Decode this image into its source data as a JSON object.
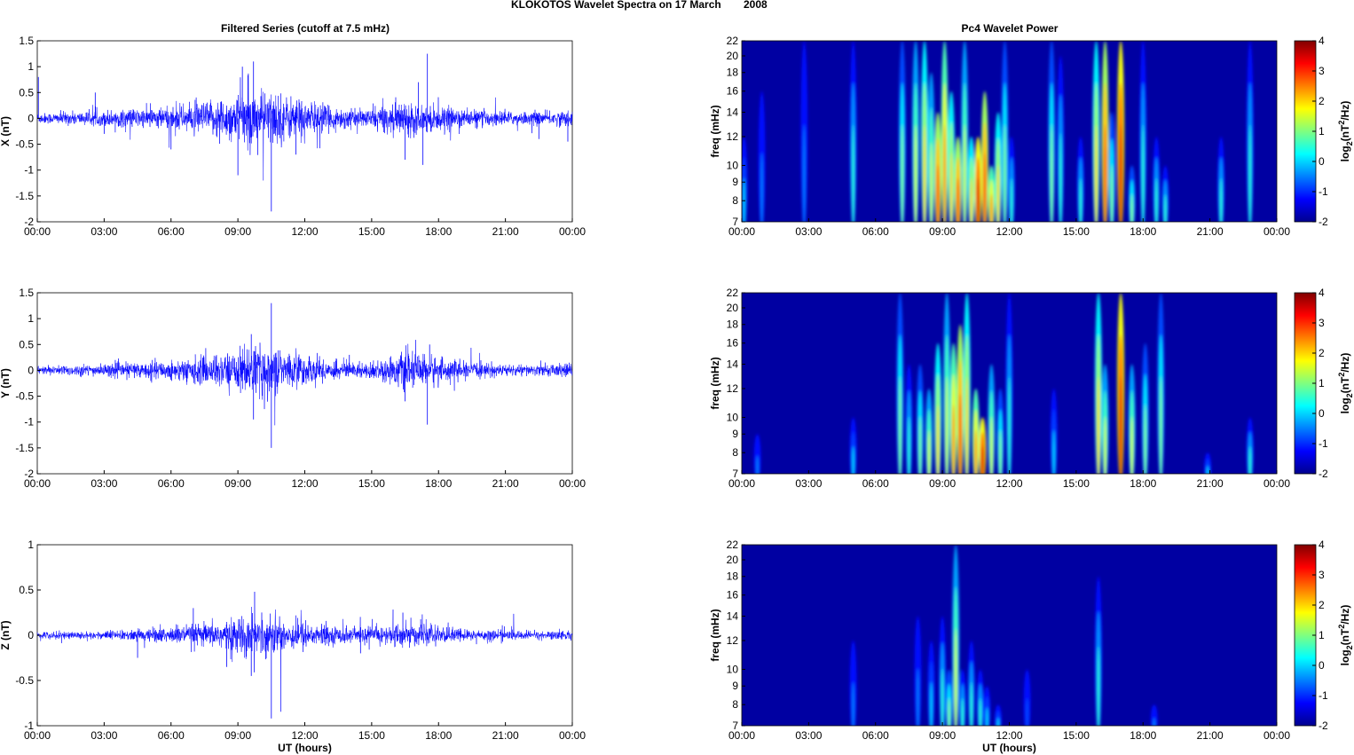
{
  "chart_data": {
    "title_left": "KLOKOTOS Wavelet Spectra on 17 March",
    "title_year": "2008",
    "left_title": "Filtered Series (cutoff at 7.5 mHz)",
    "right_title": "Pc4 Wavelet Power",
    "xlabel": "UT (hours)",
    "xticks": [
      "00:00",
      "03:00",
      "06:00",
      "09:00",
      "12:00",
      "15:00",
      "18:00",
      "21:00",
      "00:00"
    ],
    "xlim": [
      0,
      24
    ],
    "freq_label": "freq (mHz)",
    "freq_ticks": [
      7,
      8,
      9,
      10,
      12,
      14,
      16,
      18,
      20,
      22
    ],
    "freq_lim": [
      7,
      22
    ],
    "colorbar": {
      "label_main": "log",
      "label_sub": "2",
      "label_rest": "(nT",
      "label_sup": "2",
      "label_end": "/Hz)",
      "ticks": [
        -2,
        -1,
        0,
        1,
        2,
        3,
        4
      ],
      "lim": [
        -2,
        4
      ]
    },
    "series": [
      {
        "type": "line",
        "name": "X",
        "ylabel": "X (nT)",
        "ylim": [
          -2,
          1.5
        ],
        "yticks": [
          -2,
          -1.5,
          -1,
          -0.5,
          0,
          0.5,
          1,
          1.5
        ],
        "color": "#0000ff",
        "hourly_envelope": [
          0.05,
          0.06,
          0.06,
          0.08,
          0.09,
          0.1,
          0.12,
          0.15,
          0.2,
          0.25,
          0.25,
          0.2,
          0.15,
          0.1,
          0.08,
          0.12,
          0.15,
          0.12,
          0.1,
          0.08,
          0.07,
          0.06,
          0.06,
          0.07
        ],
        "spikes": [
          [
            0.05,
            0.8
          ],
          [
            2.6,
            0.5
          ],
          [
            3.0,
            -0.3
          ],
          [
            6.0,
            -0.6
          ],
          [
            9.0,
            -1.1
          ],
          [
            9.2,
            1.0
          ],
          [
            9.7,
            1.1
          ],
          [
            10.5,
            -1.8
          ],
          [
            11.6,
            -0.7
          ],
          [
            16.5,
            -0.8
          ],
          [
            17.1,
            0.7
          ],
          [
            17.5,
            1.25
          ],
          [
            17.3,
            -0.9
          ],
          [
            22.5,
            -0.4
          ],
          [
            23.8,
            -0.45
          ]
        ]
      },
      {
        "type": "line",
        "name": "Y",
        "ylabel": "Y (nT)",
        "ylim": [
          -2,
          1.5
        ],
        "yticks": [
          -2,
          -1.5,
          -1,
          -0.5,
          0,
          0.5,
          1,
          1.5
        ],
        "color": "#0000ff",
        "hourly_envelope": [
          0.04,
          0.05,
          0.05,
          0.06,
          0.07,
          0.08,
          0.1,
          0.13,
          0.16,
          0.22,
          0.22,
          0.16,
          0.12,
          0.08,
          0.07,
          0.1,
          0.16,
          0.14,
          0.1,
          0.07,
          0.06,
          0.05,
          0.05,
          0.06
        ],
        "spikes": [
          [
            9.6,
            0.7
          ],
          [
            9.7,
            -0.95
          ],
          [
            10.5,
            1.3
          ],
          [
            10.5,
            -1.5
          ],
          [
            16.5,
            -0.6
          ],
          [
            17.5,
            -1.05
          ],
          [
            17.6,
            0.5
          ],
          [
            14,
            0.3
          ],
          [
            3.5,
            0.2
          ]
        ]
      },
      {
        "type": "line",
        "name": "Z",
        "ylabel": "Z (nT)",
        "ylim": [
          -1,
          1
        ],
        "yticks": [
          -1,
          -0.5,
          0,
          0.5,
          1
        ],
        "color": "#0000ff",
        "hourly_envelope": [
          0.02,
          0.02,
          0.02,
          0.025,
          0.03,
          0.04,
          0.05,
          0.06,
          0.08,
          0.1,
          0.1,
          0.08,
          0.06,
          0.045,
          0.04,
          0.05,
          0.06,
          0.05,
          0.04,
          0.03,
          0.03,
          0.025,
          0.02,
          0.025
        ],
        "spikes": [
          [
            9.75,
            0.48
          ],
          [
            10.5,
            -0.92
          ],
          [
            9.6,
            -0.45
          ],
          [
            7.0,
            0.3
          ],
          [
            16.4,
            0.25
          ],
          [
            4.5,
            -0.25
          ],
          [
            8.5,
            -0.35
          ],
          [
            14.5,
            -0.2
          ]
        ]
      }
    ],
    "heatmaps": [
      {
        "type": "heatmap",
        "name": "X",
        "background_log2": -1.8,
        "streaks_hour_log2power_topfreq": [
          [
            0.1,
            0,
            12
          ],
          [
            0.9,
            -0.5,
            16
          ],
          [
            2.8,
            -0.5,
            22
          ],
          [
            5.0,
            0.5,
            22
          ],
          [
            7.2,
            1,
            22
          ],
          [
            7.8,
            1.5,
            22
          ],
          [
            8.2,
            2,
            22
          ],
          [
            8.5,
            1.5,
            18
          ],
          [
            8.8,
            3,
            14
          ],
          [
            9.1,
            2.5,
            22
          ],
          [
            9.4,
            2,
            16
          ],
          [
            9.7,
            3,
            12
          ],
          [
            10.0,
            1.5,
            22
          ],
          [
            10.3,
            2,
            12
          ],
          [
            10.6,
            3.5,
            12
          ],
          [
            10.9,
            3,
            16
          ],
          [
            11.2,
            2.5,
            10
          ],
          [
            11.5,
            2,
            14
          ],
          [
            11.8,
            1,
            22
          ],
          [
            12.1,
            0.5,
            12
          ],
          [
            13.9,
            1,
            22
          ],
          [
            14.3,
            0.5,
            20
          ],
          [
            15.2,
            0.5,
            12
          ],
          [
            15.9,
            2,
            22
          ],
          [
            16.3,
            3,
            22
          ],
          [
            16.6,
            1,
            14
          ],
          [
            17.0,
            3.5,
            22
          ],
          [
            17.5,
            1,
            10
          ],
          [
            18.0,
            0.5,
            22
          ],
          [
            18.6,
            0.5,
            12
          ],
          [
            19.0,
            0.5,
            10
          ],
          [
            21.5,
            0.5,
            12
          ],
          [
            22.8,
            0.5,
            22
          ]
        ]
      },
      {
        "type": "heatmap",
        "name": "Y",
        "background_log2": -1.8,
        "streaks_hour_log2power_topfreq": [
          [
            0.7,
            -0.5,
            9
          ],
          [
            5.0,
            0,
            10
          ],
          [
            7.1,
            1,
            22
          ],
          [
            7.5,
            0.5,
            14
          ],
          [
            8.0,
            1,
            14
          ],
          [
            8.4,
            1.5,
            12
          ],
          [
            8.8,
            2,
            16
          ],
          [
            9.2,
            1.5,
            22
          ],
          [
            9.5,
            2.5,
            16
          ],
          [
            9.8,
            3,
            18
          ],
          [
            10.1,
            2,
            22
          ],
          [
            10.5,
            2.5,
            12
          ],
          [
            10.8,
            3.5,
            10
          ],
          [
            11.2,
            1.5,
            14
          ],
          [
            11.6,
            1,
            12
          ],
          [
            12.0,
            0.5,
            22
          ],
          [
            14.0,
            0,
            12
          ],
          [
            16.0,
            2,
            22
          ],
          [
            16.3,
            1.5,
            14
          ],
          [
            17.0,
            3.5,
            22
          ],
          [
            17.5,
            1.5,
            14
          ],
          [
            18.1,
            1,
            16
          ],
          [
            18.8,
            1,
            22
          ],
          [
            20.9,
            0,
            8
          ],
          [
            22.8,
            0.5,
            10
          ]
        ]
      },
      {
        "type": "heatmap",
        "name": "Z",
        "background_log2": -1.8,
        "streaks_hour_log2power_topfreq": [
          [
            5.0,
            -0.5,
            12
          ],
          [
            7.9,
            -0.5,
            14
          ],
          [
            8.5,
            0,
            12
          ],
          [
            9.0,
            0.5,
            14
          ],
          [
            9.3,
            1,
            10
          ],
          [
            9.6,
            1.5,
            22
          ],
          [
            9.9,
            0.5,
            10
          ],
          [
            10.3,
            0.5,
            12
          ],
          [
            10.7,
            0.5,
            10
          ],
          [
            11.0,
            0,
            9
          ],
          [
            11.5,
            0,
            8
          ],
          [
            12.8,
            -0.8,
            10
          ],
          [
            16.0,
            0.5,
            18
          ],
          [
            18.5,
            -0.5,
            8
          ]
        ]
      }
    ]
  }
}
